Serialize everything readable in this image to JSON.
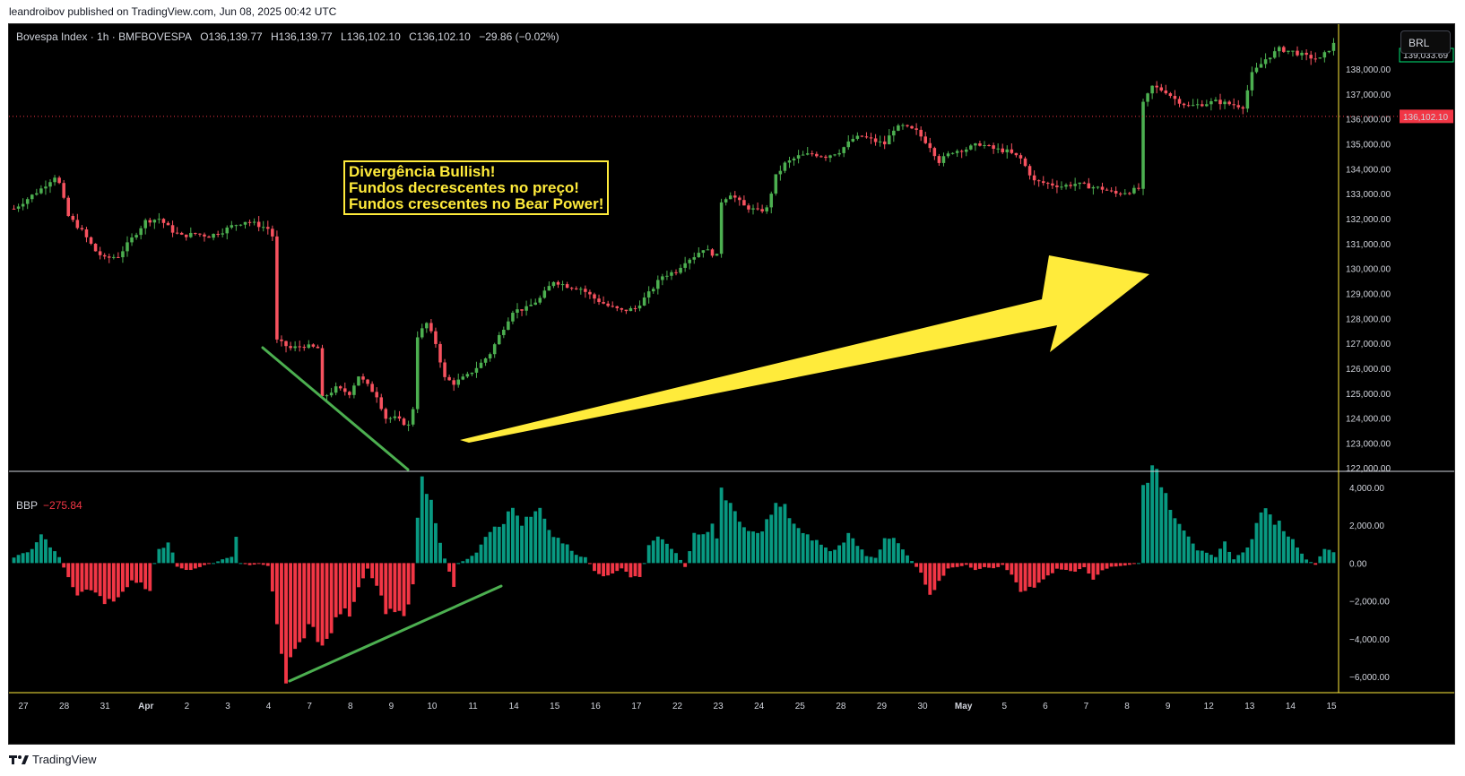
{
  "header": {
    "publisher_line": "leandroibov published on TradingView.com, Jun 08, 2025 00:42 UTC"
  },
  "legend": {
    "symbol": "Bovespa Index · 1h · BMFBOVESPA",
    "open": "O136,139.77",
    "high": "H136,139.77",
    "low": "L136,102.10",
    "close": "C136,102.10",
    "change": "−29.86 (−0.02%)"
  },
  "currency_button": "BRL",
  "indicator": {
    "name": "BBP",
    "value": "−275.84"
  },
  "annotation": {
    "line1": "Divergência Bullish!",
    "line2": "Fundos decrescentes no preço!",
    "line3": "Fundos crescentes no Bear Power!"
  },
  "footer": {
    "brand": "TradingView"
  },
  "colors": {
    "up": "#4caf50",
    "down": "#f7525f",
    "hist_up": "#089981",
    "hist_down": "#f23645",
    "annotation": "#ffeb3b",
    "trendline": "#4caf50",
    "last_price": "#f23645",
    "current_price_label": "#00e676"
  },
  "chart_data": [
    {
      "type": "candlestick",
      "title": "Bovespa Index · 1h · BMFBOVESPA",
      "y_axis_labels": [
        "138,000.00",
        "137,000.00",
        "136,000.00",
        "135,000.00",
        "134,000.00",
        "133,000.00",
        "132,000.00",
        "131,000.00",
        "130,000.00",
        "129,000.00",
        "128,000.00",
        "127,000.00",
        "126,000.00",
        "125,000.00",
        "124,000.00",
        "123,000.00",
        "122,000.00"
      ],
      "y_axis_values": [
        138000,
        137000,
        136000,
        135000,
        134000,
        133000,
        132000,
        131000,
        130000,
        129000,
        128000,
        127000,
        126000,
        125000,
        124000,
        123000,
        122000
      ],
      "ylim": [
        121900,
        139800
      ],
      "x_tick_labels": [
        "27",
        "28",
        "31",
        "Apr",
        "2",
        "3",
        "4",
        "7",
        "8",
        "9",
        "10",
        "11",
        "14",
        "15",
        "16",
        "17",
        "22",
        "23",
        "24",
        "25",
        "28",
        "29",
        "30",
        "May",
        "5",
        "6",
        "7",
        "8",
        "9",
        "12",
        "13",
        "14",
        "15"
      ],
      "bold_x_labels": [
        "Apr",
        "May"
      ],
      "last_price": 136102.1,
      "last_price_label": "136,102.10",
      "current_price_label": "139,033.69",
      "close_path": [
        [
          0,
          132400
        ],
        [
          3,
          132800
        ],
        [
          6,
          133200
        ],
        [
          9,
          133700
        ],
        [
          10,
          133400
        ],
        [
          12,
          132100
        ],
        [
          15,
          131500
        ],
        [
          18,
          130700
        ],
        [
          20,
          130400
        ],
        [
          23,
          130500
        ],
        [
          26,
          131200
        ],
        [
          29,
          131900
        ],
        [
          32,
          132000
        ],
        [
          35,
          131500
        ],
        [
          37,
          131300
        ],
        [
          40,
          131400
        ],
        [
          43,
          131300
        ],
        [
          46,
          131500
        ],
        [
          48,
          131700
        ],
        [
          51,
          131900
        ],
        [
          53,
          131800
        ],
        [
          56,
          131600
        ],
        [
          57,
          131300
        ],
        [
          58,
          127100
        ],
        [
          61,
          126800
        ],
        [
          64,
          126900
        ],
        [
          67,
          126800
        ],
        [
          68,
          124800
        ],
        [
          71,
          125200
        ],
        [
          74,
          125000
        ],
        [
          76,
          125700
        ],
        [
          78,
          125300
        ],
        [
          80,
          124900
        ],
        [
          82,
          124000
        ],
        [
          84,
          124000
        ],
        [
          86,
          123800
        ],
        [
          87,
          123700
        ],
        [
          88,
          124400
        ],
        [
          89,
          127300
        ],
        [
          91,
          127800
        ],
        [
          93,
          127000
        ],
        [
          95,
          125600
        ],
        [
          97,
          125400
        ],
        [
          100,
          125700
        ],
        [
          103,
          126200
        ],
        [
          105,
          126600
        ],
        [
          107,
          127300
        ],
        [
          110,
          128300
        ],
        [
          113,
          128400
        ],
        [
          116,
          128800
        ],
        [
          119,
          129500
        ],
        [
          122,
          129300
        ],
        [
          125,
          129200
        ],
        [
          128,
          128800
        ],
        [
          131,
          128500
        ],
        [
          134,
          128300
        ],
        [
          137,
          128400
        ],
        [
          140,
          129000
        ],
        [
          143,
          129700
        ],
        [
          146,
          129900
        ],
        [
          148,
          130300
        ],
        [
          150,
          130500
        ],
        [
          152,
          130800
        ],
        [
          154,
          130600
        ],
        [
          155,
          130500
        ],
        [
          156,
          132700
        ],
        [
          158,
          133000
        ],
        [
          161,
          132500
        ],
        [
          164,
          132300
        ],
        [
          166,
          132400
        ],
        [
          168,
          133700
        ],
        [
          170,
          134200
        ],
        [
          173,
          134500
        ],
        [
          176,
          134600
        ],
        [
          179,
          134500
        ],
        [
          182,
          134700
        ],
        [
          185,
          135200
        ],
        [
          187,
          135300
        ],
        [
          190,
          135100
        ],
        [
          192,
          135000
        ],
        [
          194,
          135600
        ],
        [
          196,
          135700
        ],
        [
          199,
          135500
        ],
        [
          202,
          134900
        ],
        [
          204,
          134300
        ],
        [
          207,
          134700
        ],
        [
          210,
          134800
        ],
        [
          213,
          135000
        ],
        [
          216,
          134800
        ],
        [
          219,
          134700
        ],
        [
          222,
          134400
        ],
        [
          225,
          133500
        ],
        [
          228,
          133400
        ],
        [
          231,
          133300
        ],
        [
          234,
          133400
        ],
        [
          237,
          133300
        ],
        [
          240,
          133200
        ],
        [
          243,
          133000
        ],
        [
          246,
          133100
        ],
        [
          248,
          133200
        ],
        [
          249,
          136600
        ],
        [
          251,
          137300
        ],
        [
          254,
          137100
        ],
        [
          256,
          136800
        ],
        [
          259,
          136500
        ],
        [
          262,
          136600
        ],
        [
          265,
          136700
        ],
        [
          268,
          136600
        ],
        [
          271,
          136500
        ],
        [
          273,
          137800
        ],
        [
          276,
          138400
        ],
        [
          279,
          138800
        ],
        [
          282,
          138700
        ],
        [
          285,
          138500
        ],
        [
          288,
          138400
        ],
        [
          291,
          139000
        ]
      ]
    },
    {
      "type": "bar",
      "title": "BBP",
      "current_value": -275.84,
      "y_axis_labels": [
        "4,000.00",
        "2,000.00",
        "0.00",
        "−2,000.00",
        "−4,000.00",
        "−6,000.00"
      ],
      "y_axis_values": [
        4000,
        2000,
        0,
        -2000,
        -4000,
        -6000
      ],
      "ylim": [
        -6800,
        4800
      ],
      "bbp_path": [
        [
          0,
          300
        ],
        [
          4,
          700
        ],
        [
          6,
          1400
        ],
        [
          8,
          900
        ],
        [
          10,
          300
        ],
        [
          12,
          -800
        ],
        [
          14,
          -1700
        ],
        [
          16,
          -1300
        ],
        [
          18,
          -1600
        ],
        [
          20,
          -2200
        ],
        [
          22,
          -2000
        ],
        [
          24,
          -1400
        ],
        [
          26,
          -1000
        ],
        [
          28,
          -1100
        ],
        [
          30,
          -1600
        ],
        [
          31,
          0
        ],
        [
          32,
          700
        ],
        [
          34,
          1000
        ],
        [
          35,
          600
        ],
        [
          36,
          -200
        ],
        [
          38,
          -400
        ],
        [
          40,
          -300
        ],
        [
          42,
          -100
        ],
        [
          44,
          0
        ],
        [
          46,
          200
        ],
        [
          48,
          300
        ],
        [
          49,
          1400
        ],
        [
          50,
          0
        ],
        [
          52,
          -100
        ],
        [
          54,
          -50
        ],
        [
          56,
          -150
        ],
        [
          58,
          -3000
        ],
        [
          60,
          -6200
        ],
        [
          62,
          -4300
        ],
        [
          64,
          -3800
        ],
        [
          66,
          -3200
        ],
        [
          68,
          -4700
        ],
        [
          70,
          -3500
        ],
        [
          72,
          -2500
        ],
        [
          74,
          -2600
        ],
        [
          76,
          -1300
        ],
        [
          78,
          -300
        ],
        [
          80,
          -1200
        ],
        [
          82,
          -2500
        ],
        [
          84,
          -2600
        ],
        [
          86,
          -3000
        ],
        [
          88,
          -1100
        ],
        [
          89,
          2300
        ],
        [
          90,
          4500
        ],
        [
          92,
          3500
        ],
        [
          94,
          1000
        ],
        [
          96,
          -500
        ],
        [
          97,
          -1300
        ],
        [
          98,
          0
        ],
        [
          100,
          200
        ],
        [
          102,
          600
        ],
        [
          104,
          1500
        ],
        [
          106,
          2000
        ],
        [
          108,
          2200
        ],
        [
          110,
          2900
        ],
        [
          112,
          2100
        ],
        [
          114,
          2400
        ],
        [
          116,
          2800
        ],
        [
          118,
          1600
        ],
        [
          120,
          1300
        ],
        [
          122,
          900
        ],
        [
          124,
          400
        ],
        [
          126,
          300
        ],
        [
          128,
          -400
        ],
        [
          130,
          -700
        ],
        [
          132,
          -600
        ],
        [
          134,
          -300
        ],
        [
          136,
          -700
        ],
        [
          138,
          -800
        ],
        [
          139,
          0
        ],
        [
          140,
          900
        ],
        [
          142,
          1400
        ],
        [
          144,
          1100
        ],
        [
          146,
          500
        ],
        [
          148,
          -200
        ],
        [
          150,
          1600
        ],
        [
          152,
          1500
        ],
        [
          154,
          2000
        ],
        [
          155,
          1200
        ],
        [
          156,
          4000
        ],
        [
          158,
          3200
        ],
        [
          160,
          2000
        ],
        [
          162,
          1700
        ],
        [
          164,
          1500
        ],
        [
          166,
          2200
        ],
        [
          168,
          3000
        ],
        [
          170,
          2900
        ],
        [
          172,
          2100
        ],
        [
          174,
          1500
        ],
        [
          176,
          1300
        ],
        [
          178,
          1000
        ],
        [
          180,
          600
        ],
        [
          182,
          900
        ],
        [
          184,
          1500
        ],
        [
          186,
          1000
        ],
        [
          188,
          400
        ],
        [
          190,
          300
        ],
        [
          192,
          1200
        ],
        [
          194,
          1300
        ],
        [
          196,
          700
        ],
        [
          198,
          100
        ],
        [
          200,
          -500
        ],
        [
          202,
          -1600
        ],
        [
          204,
          -1000
        ],
        [
          206,
          -300
        ],
        [
          208,
          -200
        ],
        [
          210,
          -100
        ],
        [
          212,
          -400
        ],
        [
          214,
          -200
        ],
        [
          216,
          -300
        ],
        [
          218,
          -100
        ],
        [
          220,
          -600
        ],
        [
          222,
          -1600
        ],
        [
          224,
          -1300
        ],
        [
          226,
          -1100
        ],
        [
          228,
          -700
        ],
        [
          230,
          -300
        ],
        [
          232,
          -400
        ],
        [
          234,
          -500
        ],
        [
          236,
          -200
        ],
        [
          238,
          -900
        ],
        [
          240,
          -400
        ],
        [
          242,
          -200
        ],
        [
          244,
          -150
        ],
        [
          246,
          -100
        ],
        [
          248,
          0
        ],
        [
          249,
          4500
        ],
        [
          251,
          4800
        ],
        [
          253,
          4300
        ],
        [
          255,
          3000
        ],
        [
          257,
          2200
        ],
        [
          259,
          1500
        ],
        [
          261,
          700
        ],
        [
          263,
          500
        ],
        [
          265,
          300
        ],
        [
          267,
          1100
        ],
        [
          269,
          200
        ],
        [
          271,
          600
        ],
        [
          273,
          1200
        ],
        [
          275,
          2900
        ],
        [
          277,
          2400
        ],
        [
          279,
          2100
        ],
        [
          281,
          1500
        ],
        [
          283,
          900
        ],
        [
          285,
          200
        ],
        [
          287,
          -100
        ],
        [
          289,
          800
        ],
        [
          291,
          600
        ]
      ]
    }
  ]
}
